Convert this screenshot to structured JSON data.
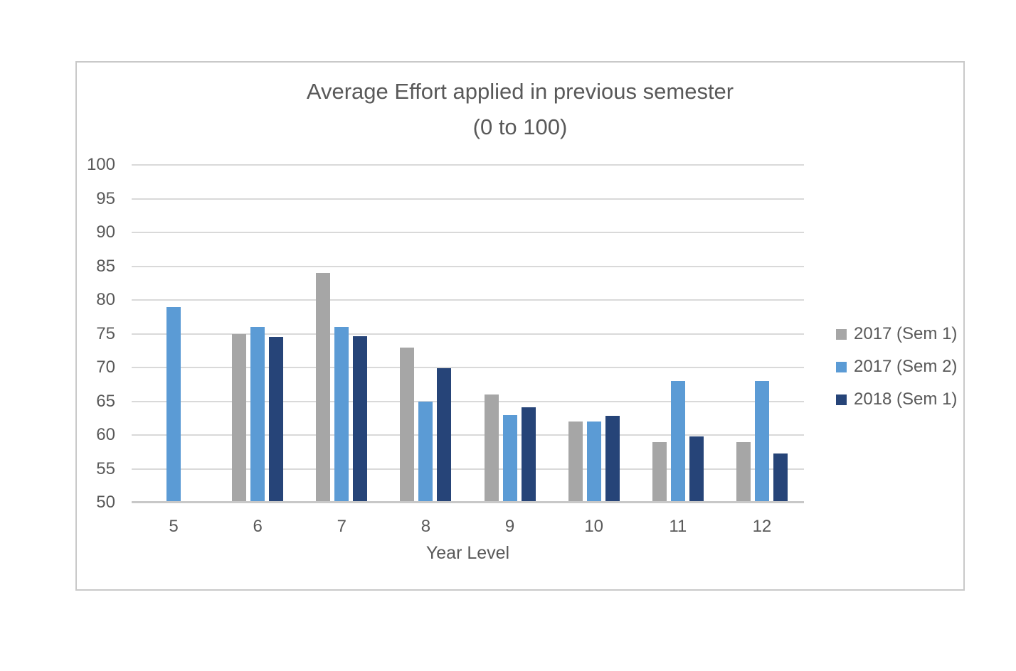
{
  "chart_data": {
    "type": "bar",
    "title": "Average Effort applied in previous semester",
    "subtitle": "(0 to 100)",
    "xlabel": "Year Level",
    "ylabel": "",
    "ylim": [
      50,
      100
    ],
    "ytick_step": 5,
    "y_ticks": [
      100,
      95,
      90,
      85,
      80,
      75,
      70,
      65,
      60,
      55,
      50
    ],
    "categories": [
      "5",
      "6",
      "7",
      "8",
      "9",
      "10",
      "11",
      "12"
    ],
    "series": [
      {
        "name": "2017 (Sem 1)",
        "color": "#a6a6a6",
        "values": [
          null,
          75,
          84,
          73,
          66,
          62,
          59,
          59
        ]
      },
      {
        "name": "2017 (Sem 2)",
        "color": "#5b9bd5",
        "values": [
          79,
          76,
          76,
          65,
          63,
          62,
          68,
          68
        ]
      },
      {
        "name": "2018 (Sem 1)",
        "color": "#264478",
        "values": [
          null,
          74.5,
          74.6,
          69.9,
          64.1,
          62.8,
          59.8,
          57.3
        ]
      }
    ],
    "legend_position": "right",
    "grid": true
  },
  "colors": {
    "text": "#595959",
    "gridline": "#d9d9d9",
    "axis_line": "#c8c8c8",
    "card_border": "#c9c9c9",
    "background": "#ffffff"
  }
}
